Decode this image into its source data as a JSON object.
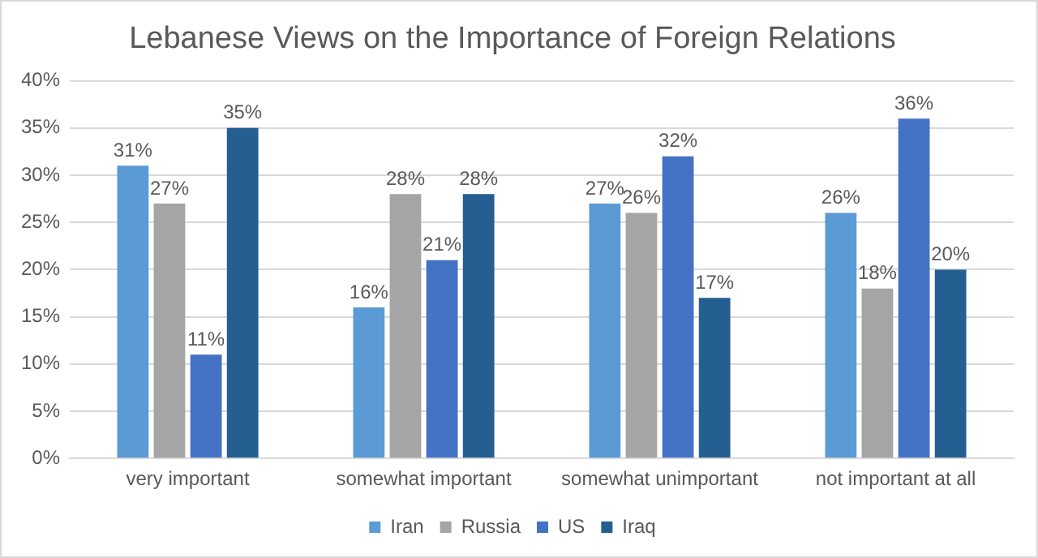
{
  "chart_data": {
    "type": "bar",
    "title": "Lebanese Views on the Importance of Foreign Relations",
    "categories": [
      "very important",
      "somewhat important",
      "somewhat unimportant",
      "not important at all"
    ],
    "series": [
      {
        "name": "Iran",
        "color": "#5b9bd5",
        "values": [
          31,
          16,
          27,
          26
        ],
        "value_labels": [
          "31%",
          "16%",
          "27%",
          "26%"
        ]
      },
      {
        "name": "Russia",
        "color": "#a5a5a5",
        "values": [
          27,
          28,
          26,
          18
        ],
        "value_labels": [
          "27%",
          "28%",
          "26%",
          "18%"
        ]
      },
      {
        "name": "US",
        "color": "#4472c4",
        "values": [
          11,
          21,
          32,
          36
        ],
        "value_labels": [
          "11%",
          "21%",
          "32%",
          "36%"
        ]
      },
      {
        "name": "Iraq",
        "color": "#255e91",
        "values": [
          35,
          28,
          17,
          20
        ],
        "value_labels": [
          "35%",
          "28%",
          "17%",
          "20%"
        ]
      }
    ],
    "ylim": [
      0,
      40
    ],
    "yticks": [
      {
        "value": 0,
        "label": "0%"
      },
      {
        "value": 5,
        "label": "5%"
      },
      {
        "value": 10,
        "label": "10%"
      },
      {
        "value": 15,
        "label": "15%"
      },
      {
        "value": 20,
        "label": "20%"
      },
      {
        "value": 25,
        "label": "25%"
      },
      {
        "value": 30,
        "label": "30%"
      },
      {
        "value": 35,
        "label": "35%"
      },
      {
        "value": 40,
        "label": "40%"
      }
    ],
    "grid": "y",
    "legend": "bottom"
  }
}
